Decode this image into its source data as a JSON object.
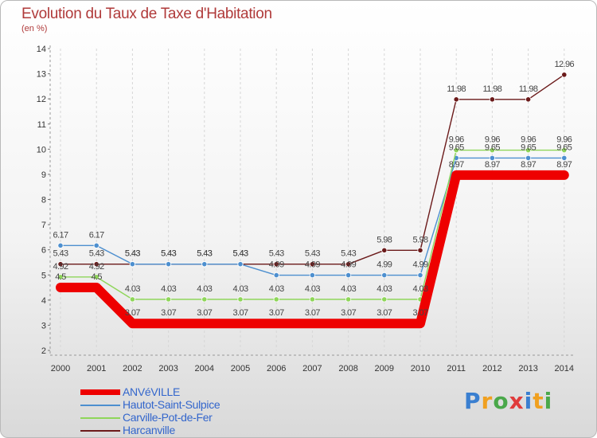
{
  "chart_data": {
    "type": "line",
    "title": "Evolution du Taux de Taxe d'Habitation",
    "subtitle": "(en %)",
    "categories": [
      "2000",
      "2001",
      "2002",
      "2003",
      "2004",
      "2005",
      "2006",
      "2007",
      "2008",
      "2009",
      "2010",
      "2011",
      "2012",
      "2013",
      "2014"
    ],
    "y_ticks": [
      "2",
      "3",
      "4",
      "5",
      "6",
      "7",
      "8",
      "9",
      "10",
      "11",
      "12",
      "13",
      "14"
    ],
    "ylim": [
      2,
      14
    ],
    "series": [
      {
        "name": "Harcanville",
        "color": "#6b1a1a",
        "values": [
          5.43,
          5.43,
          5.43,
          5.43,
          5.43,
          5.43,
          5.43,
          5.43,
          5.43,
          5.98,
          5.98,
          11.98,
          11.98,
          11.98,
          12.96
        ],
        "labels": [
          "5.43",
          "5.43",
          "5.43",
          "5.43",
          "5.43",
          "5.43",
          "5.43",
          "5.43",
          "5.43",
          "5.98",
          "5.98",
          "11.98",
          "11.98",
          "11.98",
          "12.96"
        ]
      },
      {
        "name": "Hautot-Saint-Sulpice",
        "color": "#4d8fcf",
        "values": [
          6.17,
          6.17,
          5.43,
          5.43,
          5.43,
          5.43,
          4.99,
          4.99,
          4.99,
          4.99,
          4.99,
          9.65,
          9.65,
          9.65,
          9.65
        ],
        "labels": [
          "6.17",
          "6.17",
          "5.43",
          "5.43",
          "5.43",
          "5.43",
          "4.99",
          "4.99",
          "4.99",
          "4.99",
          "4.99",
          "9.65",
          "9.65",
          "9.65",
          "9.65"
        ]
      },
      {
        "name": "Carville-Pot-de-Fer",
        "color": "#8fd65a",
        "values": [
          4.92,
          4.92,
          4.03,
          4.03,
          4.03,
          4.03,
          4.03,
          4.03,
          4.03,
          4.03,
          4.03,
          9.96,
          9.96,
          9.96,
          9.96
        ],
        "labels": [
          "4.92",
          "4.92",
          "4.03",
          "4.03",
          "4.03",
          "4.03",
          "4.03",
          "4.03",
          "4.03",
          "4.03",
          "4.03",
          "9.96",
          "9.96",
          "9.96",
          "9.96"
        ]
      },
      {
        "name": "ANVéVILLE",
        "color": "#ee0000",
        "values": [
          4.5,
          4.5,
          3.07,
          3.07,
          3.07,
          3.07,
          3.07,
          3.07,
          3.07,
          3.07,
          3.07,
          8.97,
          8.97,
          8.97,
          8.97
        ],
        "labels": [
          "4.5",
          "4.5",
          "3.07",
          "3.07",
          "3.07",
          "3.07",
          "3.07",
          "3.07",
          "3.07",
          "3.07",
          "3.07",
          "8.97",
          "8.97",
          "8.97",
          "8.97"
        ]
      }
    ]
  },
  "legend": {
    "items": [
      {
        "label": "ANVéVILLE",
        "color": "#ee0000"
      },
      {
        "label": "Hautot-Saint-Sulpice",
        "color": "#4d8fcf"
      },
      {
        "label": "Carville-Pot-de-Fer",
        "color": "#8fd65a"
      },
      {
        "label": "Harcanville",
        "color": "#6b1a1a"
      }
    ]
  },
  "logo": {
    "text": "Proxiti",
    "colors": [
      "#3a7fd0",
      "#f0a020",
      "#4aa84a",
      "#e03c3c",
      "#3a7fd0",
      "#f0a020",
      "#4aa84a"
    ]
  }
}
